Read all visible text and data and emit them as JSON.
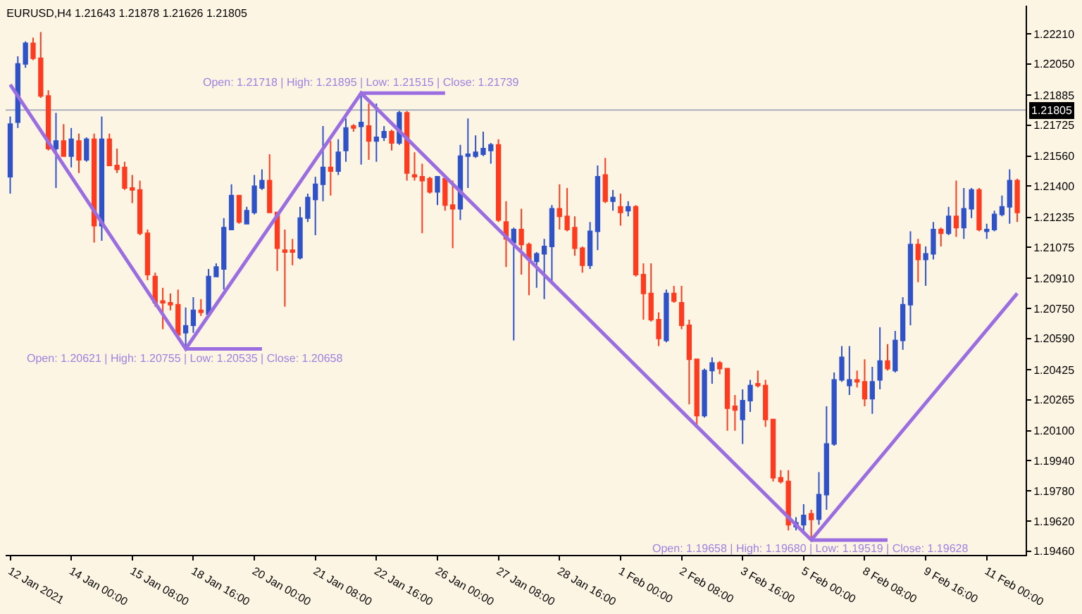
{
  "chart_data": {
    "type": "candlestick",
    "title": "EURUSD,H4 1.21643 1.21878 1.21626 1.21805",
    "categories": [
      "12 Jan 2021",
      null,
      null,
      null,
      null,
      null,
      null,
      null,
      "14 Jan 00:00",
      null,
      null,
      null,
      null,
      null,
      null,
      null,
      "15 Jan 08:00",
      null,
      null,
      null,
      null,
      null,
      null,
      null,
      "18 Jan 16:00",
      null,
      null,
      null,
      null,
      null,
      null,
      null,
      "20 Jan 00:00",
      null,
      null,
      null,
      null,
      null,
      null,
      null,
      "21 Jan 08:00",
      null,
      null,
      null,
      null,
      null,
      null,
      null,
      "22 Jan 16:00",
      null,
      null,
      null,
      null,
      null,
      null,
      null,
      "26 Jan 00:00",
      null,
      null,
      null,
      null,
      null,
      null,
      null,
      "27 Jan 08:00",
      null,
      null,
      null,
      null,
      null,
      null,
      null,
      "28 Jan 16:00",
      null,
      null,
      null,
      null,
      null,
      null,
      null,
      "1 Feb 00:00",
      null,
      null,
      null,
      null,
      null,
      null,
      null,
      "2 Feb 08:00",
      null,
      null,
      null,
      null,
      null,
      null,
      null,
      "3 Feb 16:00",
      null,
      null,
      null,
      null,
      null,
      null,
      null,
      "5 Feb 00:00",
      null,
      null,
      null,
      null,
      null,
      null,
      null,
      "8 Feb 08:00",
      null,
      null,
      null,
      null,
      null,
      null,
      null,
      "9 Feb 16:00",
      null,
      null,
      null,
      null,
      null,
      null,
      null,
      "11 Feb 00:00",
      null,
      null,
      null,
      null
    ],
    "series": [
      {
        "type": "line",
        "color": "#9a6ee0",
        "values": [
          1.2194,
          null,
          null,
          null,
          null,
          null,
          null,
          null,
          null,
          null,
          null,
          null,
          null,
          null,
          null,
          null,
          null,
          null,
          null,
          null,
          null,
          null,
          null,
          1.20535,
          null,
          null,
          null,
          null,
          null,
          null,
          null,
          null,
          null,
          null,
          null,
          null,
          null,
          null,
          null,
          null,
          null,
          null,
          null,
          null,
          null,
          null,
          1.21895,
          null,
          null,
          null,
          null,
          null,
          null,
          null,
          null,
          null,
          null,
          null,
          null,
          null,
          null,
          null,
          null,
          null,
          null,
          null,
          null,
          null,
          null,
          null,
          null,
          null,
          null,
          null,
          null,
          null,
          null,
          null,
          null,
          null,
          null,
          null,
          null,
          null,
          null,
          null,
          null,
          null,
          null,
          null,
          null,
          null,
          null,
          null,
          null,
          null,
          null,
          null,
          null,
          null,
          null,
          null,
          null,
          null,
          null,
          1.19519,
          null,
          null,
          null,
          null,
          null,
          null,
          null,
          null,
          null,
          null,
          null,
          null,
          null,
          null,
          null,
          null,
          null,
          null,
          null,
          null,
          null,
          null,
          null,
          null,
          null,
          null,
          1.2083
        ]
      },
      {
        "type": "line",
        "color": "#9a6ee0",
        "values": [
          null,
          null,
          null,
          null,
          null,
          null,
          null,
          null,
          null,
          null,
          null,
          null,
          null,
          null,
          null,
          null,
          null,
          null,
          null,
          null,
          null,
          null,
          null,
          1.20535,
          null,
          null,
          null,
          null,
          null,
          null,
          null,
          null,
          null,
          1.20535,
          null,
          null,
          null,
          null,
          null,
          null,
          null,
          null,
          null,
          null,
          null,
          null,
          null,
          null,
          null,
          null,
          null,
          null,
          null,
          null,
          null,
          null,
          null,
          null,
          null,
          null,
          null,
          null,
          null,
          null,
          null,
          null,
          null,
          null,
          null,
          null,
          null,
          null,
          null,
          null,
          null,
          null,
          null,
          null,
          null,
          null,
          null,
          null,
          null,
          null,
          null,
          null,
          null,
          null,
          null,
          null,
          null,
          null,
          null,
          null,
          null,
          null,
          null,
          null,
          null,
          null,
          null,
          null,
          null,
          null,
          null,
          null,
          null,
          null,
          null,
          null,
          null,
          null,
          null,
          null,
          null,
          null,
          null,
          null,
          null,
          null,
          null,
          null,
          null,
          null,
          null,
          null,
          null,
          null,
          null,
          null,
          null,
          null,
          null
        ]
      },
      {
        "type": "line",
        "color": "#9a6ee0",
        "values": [
          null,
          null,
          null,
          null,
          null,
          null,
          null,
          null,
          null,
          null,
          null,
          null,
          null,
          null,
          null,
          null,
          null,
          null,
          null,
          null,
          null,
          null,
          null,
          null,
          null,
          null,
          null,
          null,
          null,
          null,
          null,
          null,
          null,
          null,
          null,
          null,
          null,
          null,
          null,
          null,
          null,
          null,
          null,
          null,
          null,
          null,
          1.21895,
          null,
          null,
          null,
          null,
          null,
          null,
          null,
          null,
          null,
          null,
          1.21895,
          null,
          null,
          null,
          null,
          null,
          null,
          null,
          null,
          null,
          null,
          null,
          null,
          null,
          null,
          null,
          null,
          null,
          null,
          null,
          null,
          null,
          null,
          null,
          null,
          null,
          null,
          null,
          null,
          null,
          null,
          null,
          null,
          null,
          null,
          null,
          null,
          null,
          null,
          null,
          null,
          null,
          null,
          null,
          null,
          null,
          null,
          null,
          null,
          null,
          null,
          null,
          null,
          null,
          null,
          null,
          null,
          null,
          null,
          null,
          null,
          null,
          null,
          null,
          null,
          null,
          null,
          null,
          null,
          null,
          null,
          null,
          null,
          null,
          null,
          null
        ]
      },
      {
        "type": "line",
        "color": "#9a6ee0",
        "values": [
          null,
          null,
          null,
          null,
          null,
          null,
          null,
          null,
          null,
          null,
          null,
          null,
          null,
          null,
          null,
          null,
          null,
          null,
          null,
          null,
          null,
          null,
          null,
          null,
          null,
          null,
          null,
          null,
          null,
          null,
          null,
          null,
          null,
          null,
          null,
          null,
          null,
          null,
          null,
          null,
          null,
          null,
          null,
          null,
          null,
          null,
          null,
          null,
          null,
          null,
          null,
          null,
          null,
          null,
          null,
          null,
          null,
          null,
          null,
          null,
          null,
          null,
          null,
          null,
          null,
          null,
          null,
          null,
          null,
          null,
          null,
          null,
          null,
          null,
          null,
          null,
          null,
          null,
          null,
          null,
          null,
          null,
          null,
          null,
          null,
          null,
          null,
          null,
          null,
          null,
          null,
          null,
          null,
          null,
          null,
          null,
          null,
          null,
          null,
          null,
          null,
          null,
          null,
          null,
          null,
          1.19519,
          null,
          null,
          null,
          null,
          null,
          null,
          null,
          null,
          null,
          1.19519,
          null,
          null,
          null,
          null,
          null,
          null,
          null,
          null,
          null,
          null,
          null,
          null,
          null,
          null,
          null,
          null,
          null
        ]
      },
      {
        "type": "candlestick",
        "ohlc": [
          [
            1.2145,
            1.2177,
            1.2136,
            1.2173
          ],
          [
            1.2174,
            1.2209,
            1.2171,
            1.2205
          ],
          [
            1.2205,
            1.2217,
            1.2203,
            1.2216
          ],
          [
            1.2216,
            1.2219,
            1.2207,
            1.2208
          ],
          [
            1.2208,
            1.2222,
            1.2187,
            1.2188
          ],
          [
            1.2188,
            1.2191,
            1.2159,
            1.216
          ],
          [
            1.216,
            1.2179,
            1.2139,
            1.2164
          ],
          [
            1.2164,
            1.2173,
            1.2156,
            1.2156
          ],
          [
            1.2156,
            1.2171,
            1.215,
            1.2165
          ],
          [
            1.2164,
            1.2168,
            1.2147,
            1.2154
          ],
          [
            1.2154,
            1.2166,
            1.2153,
            1.2165
          ],
          [
            1.2165,
            1.2168,
            1.211,
            1.2119
          ],
          [
            1.2119,
            1.2177,
            1.2111,
            1.2165
          ],
          [
            1.2165,
            1.2168,
            1.2151,
            1.2151
          ],
          [
            1.2151,
            1.216,
            1.2147,
            1.2149
          ],
          [
            1.215,
            1.2153,
            1.2138,
            1.2139
          ],
          [
            1.2139,
            1.2146,
            1.2131,
            1.2138
          ],
          [
            1.2138,
            1.2143,
            1.2114,
            1.2115
          ],
          [
            1.2115,
            1.2117,
            1.209,
            1.2093
          ],
          [
            1.2092,
            1.2094,
            1.2076,
            1.2078
          ],
          [
            1.2079,
            1.2086,
            1.2064,
            1.2078
          ],
          [
            1.2078,
            1.2083,
            1.2074,
            1.2077
          ],
          [
            1.2077,
            1.2085,
            1.2059,
            1.2061
          ],
          [
            1.20621,
            1.20755,
            1.20535,
            1.20658
          ],
          [
            1.2066,
            1.2081,
            1.2062,
            1.2074
          ],
          [
            1.2074,
            1.208,
            1.2071,
            1.2073
          ],
          [
            1.2072,
            1.2096,
            1.2072,
            1.2092
          ],
          [
            1.2092,
            1.2099,
            1.2092,
            1.2097
          ],
          [
            1.2096,
            1.2123,
            1.2085,
            1.2118
          ],
          [
            1.2117,
            1.2141,
            1.2117,
            1.2135
          ],
          [
            1.2135,
            1.2135,
            1.212,
            1.2121
          ],
          [
            1.212,
            1.2129,
            1.212,
            1.2127
          ],
          [
            1.2126,
            1.2146,
            1.2125,
            1.214
          ],
          [
            1.2139,
            1.2149,
            1.2138,
            1.2143
          ],
          [
            1.2143,
            1.2157,
            1.2126,
            1.2126
          ],
          [
            1.2126,
            1.2126,
            1.2095,
            1.2107
          ],
          [
            1.2106,
            1.2117,
            1.2076,
            1.2105
          ],
          [
            1.2106,
            1.2112,
            1.2098,
            1.2105
          ],
          [
            1.2102,
            1.2129,
            1.2101,
            1.2123
          ],
          [
            1.2123,
            1.2136,
            1.2121,
            1.2134
          ],
          [
            1.2133,
            1.2145,
            1.2114,
            1.2141
          ],
          [
            1.2141,
            1.2172,
            1.2132,
            1.215
          ],
          [
            1.215,
            1.2164,
            1.2135,
            1.2148
          ],
          [
            1.2148,
            1.2165,
            1.2146,
            1.2158
          ],
          [
            1.2159,
            1.2176,
            1.2153,
            1.2171
          ],
          [
            1.2172,
            1.2173,
            1.2169,
            1.2171
          ],
          [
            1.21718,
            1.21895,
            1.21515,
            1.21739
          ],
          [
            1.2172,
            1.2184,
            1.2154,
            1.2164
          ],
          [
            1.2164,
            1.2184,
            1.2153,
            1.2166
          ],
          [
            1.2166,
            1.2172,
            1.2164,
            1.2169
          ],
          [
            1.2169,
            1.217,
            1.2159,
            1.2163
          ],
          [
            1.2163,
            1.218,
            1.2162,
            1.2179
          ],
          [
            1.2179,
            1.218,
            1.2143,
            1.2147
          ],
          [
            1.2146,
            1.2158,
            1.2143,
            1.2145
          ],
          [
            1.2145,
            1.2152,
            1.2115,
            1.2143
          ],
          [
            1.2144,
            1.2145,
            1.2136,
            1.2137
          ],
          [
            1.2137,
            1.2145,
            1.213,
            1.2145
          ],
          [
            1.2144,
            1.2145,
            1.2127,
            1.213
          ],
          [
            1.213,
            1.2143,
            1.2107,
            1.2128
          ],
          [
            1.2128,
            1.2162,
            1.2122,
            1.2156
          ],
          [
            1.2156,
            1.2176,
            1.2139,
            1.2157
          ],
          [
            1.2156,
            1.2167,
            1.2155,
            1.2158
          ],
          [
            1.2157,
            1.2169,
            1.2156,
            1.216
          ],
          [
            1.2159,
            1.2163,
            1.2152,
            1.2162
          ],
          [
            1.2162,
            1.2165,
            1.2121,
            1.2122
          ],
          [
            1.2121,
            1.2132,
            1.2097,
            1.2112
          ],
          [
            1.211,
            1.2118,
            1.2058,
            1.2117
          ],
          [
            1.2117,
            1.2128,
            1.2093,
            1.2109
          ],
          [
            1.2109,
            1.211,
            1.2082,
            1.2101
          ],
          [
            1.21,
            1.2105,
            1.2086,
            1.2104
          ],
          [
            1.2104,
            1.2112,
            1.208,
            1.2108
          ],
          [
            1.2108,
            1.213,
            1.2088,
            1.2128
          ],
          [
            1.2128,
            1.2141,
            1.2117,
            1.2124
          ],
          [
            1.2124,
            1.2139,
            1.2116,
            1.2117
          ],
          [
            1.2118,
            1.2124,
            1.2103,
            1.2107
          ],
          [
            1.2107,
            1.2108,
            1.2094,
            1.2098
          ],
          [
            1.2098,
            1.2121,
            1.2096,
            1.2116
          ],
          [
            1.2116,
            1.2151,
            1.2106,
            1.2145
          ],
          [
            1.2146,
            1.2155,
            1.2131,
            1.2132
          ],
          [
            1.2132,
            1.2138,
            1.2127,
            1.2134
          ],
          [
            1.2129,
            1.2136,
            1.2119,
            1.2126
          ],
          [
            1.2127,
            1.2132,
            1.2124,
            1.2129
          ],
          [
            1.2129,
            1.213,
            1.2092,
            1.2093
          ],
          [
            1.2093,
            1.2099,
            1.2069,
            1.2083
          ],
          [
            1.2083,
            1.2099,
            1.2068,
            1.2069
          ],
          [
            1.2069,
            1.2073,
            1.2055,
            1.2059
          ],
          [
            1.2058,
            1.2085,
            1.2057,
            1.2083
          ],
          [
            1.2083,
            1.2087,
            1.2078,
            1.2079
          ],
          [
            1.2078,
            1.2087,
            1.2064,
            1.2066
          ],
          [
            1.2066,
            1.2069,
            1.2024,
            1.2048
          ],
          [
            1.2048,
            1.2048,
            1.2013,
            1.2018
          ],
          [
            1.2018,
            1.2043,
            1.2017,
            1.2042
          ],
          [
            1.2042,
            1.2049,
            1.2035,
            1.2046
          ],
          [
            1.2046,
            1.2047,
            1.204,
            1.2043
          ],
          [
            1.2043,
            1.2043,
            1.201,
            1.2022
          ],
          [
            1.2023,
            1.2029,
            1.201,
            1.2021
          ],
          [
            1.2016,
            1.2032,
            1.2003,
            1.2026
          ],
          [
            1.2026,
            1.2037,
            1.202,
            1.2034
          ],
          [
            1.2035,
            1.2042,
            1.2033,
            1.2034
          ],
          [
            1.2034,
            1.2037,
            1.2012,
            1.2016
          ],
          [
            1.2016,
            1.2016,
            1.1983,
            1.1985
          ],
          [
            1.1985,
            1.1989,
            1.1982,
            1.1983
          ],
          [
            1.1983,
            1.1989,
            1.1957,
            1.196
          ],
          [
            1.1959,
            1.1964,
            1.1957,
            1.1961
          ],
          [
            1.196,
            1.1971,
            1.1957,
            1.1965
          ],
          [
            1.19658,
            1.1968,
            1.19519,
            1.19628
          ],
          [
            1.1963,
            1.1988,
            1.196,
            1.1976
          ],
          [
            1.1976,
            1.2023,
            1.1968,
            1.2003
          ],
          [
            1.2003,
            1.2041,
            1.2002,
            1.2037
          ],
          [
            1.2037,
            1.2055,
            1.2036,
            1.2049
          ],
          [
            1.2034,
            1.2055,
            1.2029,
            1.2037
          ],
          [
            1.2037,
            1.2042,
            1.2033,
            1.2036
          ],
          [
            1.2036,
            1.2048,
            1.2023,
            1.2027
          ],
          [
            1.2027,
            1.2044,
            1.2019,
            1.2036
          ],
          [
            1.2037,
            1.2065,
            1.2032,
            1.2047
          ],
          [
            1.2047,
            1.2056,
            1.2042,
            1.2043
          ],
          [
            1.2042,
            1.2063,
            1.2041,
            1.2058
          ],
          [
            1.2058,
            1.2081,
            1.2053,
            1.2077
          ],
          [
            1.2077,
            1.2116,
            1.2066,
            1.2109
          ],
          [
            1.2109,
            1.2112,
            1.2089,
            1.2101
          ],
          [
            1.2101,
            1.2108,
            1.2087,
            1.2104
          ],
          [
            1.2104,
            1.2121,
            1.2101,
            1.2117
          ],
          [
            1.2117,
            1.2118,
            1.2108,
            1.2115
          ],
          [
            1.2115,
            1.2129,
            1.2114,
            1.2124
          ],
          [
            1.2124,
            1.2143,
            1.2113,
            1.2118
          ],
          [
            1.2118,
            1.2139,
            1.2112,
            1.2128
          ],
          [
            1.2128,
            1.2139,
            1.2123,
            1.2138
          ],
          [
            1.2138,
            1.2139,
            1.2116,
            1.2117
          ],
          [
            1.2116,
            1.212,
            1.2112,
            1.2117
          ],
          [
            1.2117,
            1.2127,
            1.2116,
            1.2125
          ],
          [
            1.2125,
            1.2135,
            1.2124,
            1.2129
          ],
          [
            1.2129,
            1.2149,
            1.212,
            1.2143
          ],
          [
            1.2143,
            1.2144,
            1.2121,
            1.2126
          ]
        ],
        "colors": [
          "#2f52c8",
          "#2f52c8",
          "#2f52c8",
          "#ff3b1f",
          "#ff3b1f",
          "#ff3b1f",
          "#2f52c8",
          "#ff3b1f",
          "#2f52c8",
          "#ff3b1f",
          "#2f52c8",
          "#ff3b1f",
          "#2f52c8",
          "#ff3b1f",
          "#ff3b1f",
          "#ff3b1f",
          "#ff3b1f",
          "#ff3b1f",
          "#ff3b1f",
          "#ff3b1f",
          "#ff3b1f",
          "#ff3b1f",
          "#ff3b1f",
          "#2f52c8",
          "#2f52c8",
          "#ff3b1f",
          "#2f52c8",
          "#2f52c8",
          "#2f52c8",
          "#2f52c8",
          "#ff3b1f",
          "#2f52c8",
          "#2f52c8",
          "#2f52c8",
          "#ff3b1f",
          "#ff3b1f",
          "#ff3b1f",
          "#ff3b1f",
          "#2f52c8",
          "#2f52c8",
          "#2f52c8",
          "#2f52c8",
          "#ff3b1f",
          "#2f52c8",
          "#2f52c8",
          "#ff3b1f",
          "#2f52c8",
          "#ff3b1f",
          "#2f52c8",
          "#2f52c8",
          "#ff3b1f",
          "#2f52c8",
          "#ff3b1f",
          "#ff3b1f",
          "#ff3b1f",
          "#ff3b1f",
          "#2f52c8",
          "#ff3b1f",
          "#ff3b1f",
          "#2f52c8",
          "#2f52c8",
          "#2f52c8",
          "#2f52c8",
          "#2f52c8",
          "#ff3b1f",
          "#ff3b1f",
          "#2f52c8",
          "#ff3b1f",
          "#ff3b1f",
          "#2f52c8",
          "#2f52c8",
          "#2f52c8",
          "#ff3b1f",
          "#ff3b1f",
          "#ff3b1f",
          "#ff3b1f",
          "#2f52c8",
          "#2f52c8",
          "#ff3b1f",
          "#2f52c8",
          "#ff3b1f",
          "#2f52c8",
          "#ff3b1f",
          "#ff3b1f",
          "#ff3b1f",
          "#ff3b1f",
          "#2f52c8",
          "#ff3b1f",
          "#ff3b1f",
          "#ff3b1f",
          "#ff3b1f",
          "#2f52c8",
          "#2f52c8",
          "#ff3b1f",
          "#ff3b1f",
          "#ff3b1f",
          "#2f52c8",
          "#2f52c8",
          "#ff3b1f",
          "#ff3b1f",
          "#ff3b1f",
          "#ff3b1f",
          "#ff3b1f",
          "#2f52c8",
          "#2f52c8",
          "#ff3b1f",
          "#2f52c8",
          "#2f52c8",
          "#2f52c8",
          "#2f52c8",
          "#2f52c8",
          "#ff3b1f",
          "#ff3b1f",
          "#2f52c8",
          "#2f52c8",
          "#ff3b1f",
          "#2f52c8",
          "#2f52c8",
          "#2f52c8",
          "#ff3b1f",
          "#2f52c8",
          "#2f52c8",
          "#ff3b1f",
          "#2f52c8",
          "#ff3b1f",
          "#2f52c8",
          "#2f52c8",
          "#ff3b1f",
          "#2f52c8",
          "#2f52c8",
          "#2f52c8",
          "#2f52c8",
          "#ff3b1f"
        ]
      }
    ],
    "ylim": [
      1.1944,
      1.2236
    ],
    "yticks": [
      {
        "value": 1.2221,
        "label": "1.22210"
      },
      {
        "value": 1.2205,
        "label": "1.22050"
      },
      {
        "value": 1.21885,
        "label": "1.21885"
      },
      {
        "value": 1.21725,
        "label": "1.21725"
      },
      {
        "value": 1.2156,
        "label": "1.21560"
      },
      {
        "value": 1.214,
        "label": "1.21400"
      },
      {
        "value": 1.21235,
        "label": "1.21235"
      },
      {
        "value": 1.21075,
        "label": "1.21075"
      },
      {
        "value": 1.2091,
        "label": "1.20910"
      },
      {
        "value": 1.2075,
        "label": "1.20750"
      },
      {
        "value": 1.2059,
        "label": "1.20590"
      },
      {
        "value": 1.20425,
        "label": "1.20425"
      },
      {
        "value": 1.20265,
        "label": "1.20265"
      },
      {
        "value": 1.201,
        "label": "1.20100"
      },
      {
        "value": 1.1994,
        "label": "1.19940"
      },
      {
        "value": 1.1978,
        "label": "1.19780"
      },
      {
        "value": 1.1962,
        "label": "1.19620"
      },
      {
        "value": 1.1946,
        "label": "1.19460"
      }
    ],
    "ref_lines": [
      {
        "axis": "y",
        "value": 1.21805,
        "label": "1.21805",
        "color": "#a9b0bc"
      }
    ],
    "annotations": [
      {
        "text": "Open: 1.20621 | High: 1.20755 | Low: 1.20535 | Close: 1.20658",
        "y": 1.20535
      },
      {
        "text": "Open: 1.21718 | High: 1.21895 | Low: 1.21515 | Close: 1.21739",
        "y": 1.21895
      },
      {
        "text": "Open: 1.19658 | High: 1.19680 | Low: 1.19519 | Close: 1.19628",
        "y": 1.19519
      }
    ]
  }
}
